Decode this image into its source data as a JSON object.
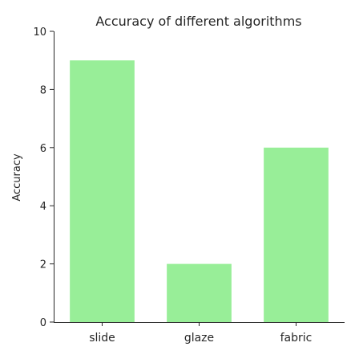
{
  "chart_data": {
    "type": "bar",
    "title": "Accuracy of different algorithms",
    "xlabel": "",
    "ylabel": "Accuracy",
    "categories": [
      "slide",
      "glaze",
      "fabric"
    ],
    "values": [
      9,
      2,
      6
    ],
    "ylim": [
      0,
      10
    ],
    "yticks": [
      0,
      2,
      4,
      6,
      8,
      10
    ],
    "grid": false,
    "legend": "none",
    "colors": {
      "bar": "#98ee98",
      "axis": "#262626",
      "text": "#262626",
      "background": "#ffffff"
    }
  }
}
